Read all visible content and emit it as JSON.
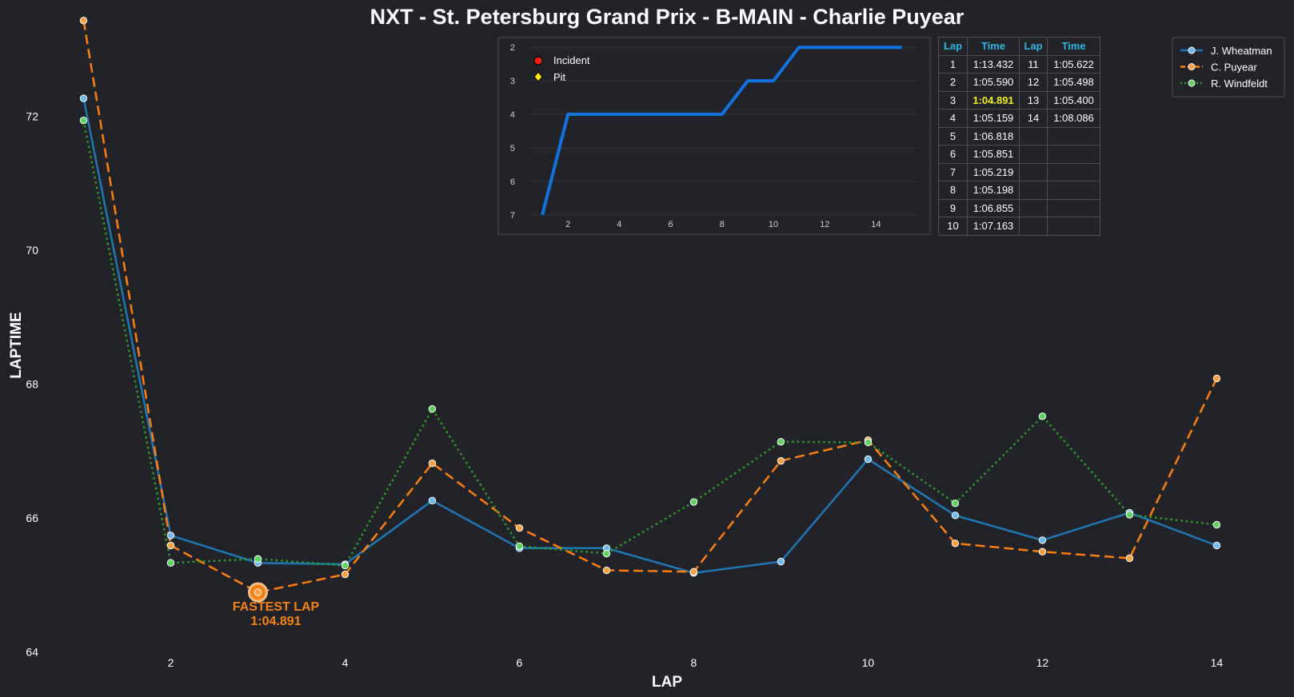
{
  "chart_data": [
    {
      "type": "line",
      "title": "NXT - St. Petersburg Grand Prix - B-MAIN - Charlie Puyear",
      "xlabel": "LAP",
      "ylabel": "LAPTIME",
      "xlim": [
        0.5,
        14.4
      ],
      "ylim": [
        63.9,
        73.5
      ],
      "xticks": [
        2,
        4,
        6,
        8,
        10,
        12,
        14
      ],
      "yticks": [
        64,
        66,
        68,
        70,
        72
      ],
      "grid": false,
      "legend_position": "top-right",
      "x": [
        1,
        2,
        3,
        4,
        5,
        6,
        7,
        8,
        9,
        10,
        11,
        12,
        13,
        14
      ],
      "series": [
        {
          "name": "J. Wheatman",
          "color": "#1f77b4",
          "marker": "#6fb8f0",
          "dash": "solid",
          "values": [
            72.27,
            65.74,
            65.33,
            65.31,
            66.26,
            65.55,
            65.55,
            65.18,
            65.35,
            66.88,
            66.04,
            65.67,
            66.08,
            65.59
          ]
        },
        {
          "name": "C. Puyear",
          "color": "#ff7f0e",
          "marker": "#ffa040",
          "dash": "dashed",
          "values": [
            73.432,
            65.59,
            64.891,
            65.159,
            66.818,
            65.851,
            65.219,
            65.198,
            66.855,
            67.163,
            65.622,
            65.498,
            65.4,
            68.086
          ]
        },
        {
          "name": "R. Windfeldt",
          "color": "#2ca02c",
          "marker": "#5fd35f",
          "dash": "dotted",
          "values": [
            71.94,
            65.33,
            65.39,
            65.29,
            67.63,
            65.58,
            65.47,
            66.24,
            67.14,
            67.13,
            66.22,
            67.52,
            66.05,
            65.9
          ]
        }
      ],
      "annotation": {
        "line1": "FASTEST LAP",
        "line2": "1:04.891",
        "lap": 3,
        "value": 64.891
      }
    },
    {
      "type": "line",
      "title": "",
      "xlim": [
        0.5,
        15.7
      ],
      "ylim": [
        7.1,
        1.9
      ],
      "xticks": [
        2,
        4,
        6,
        8,
        10,
        12,
        14
      ],
      "yticks": [
        2,
        3,
        4,
        5,
        6,
        7
      ],
      "x": [
        1,
        2,
        3,
        4,
        5,
        6,
        7,
        8,
        9,
        10,
        11,
        12,
        13,
        14,
        15
      ],
      "positions": [
        7,
        4,
        4,
        4,
        4,
        4,
        4,
        4,
        3,
        3,
        2,
        2,
        2,
        2,
        2
      ],
      "line_color": "#1273de",
      "legend": [
        {
          "label": "Incident",
          "color": "#ff1a1a",
          "shape": "circle"
        },
        {
          "label": "Pit",
          "color": "#ffee00",
          "shape": "diamond"
        }
      ]
    }
  ],
  "lap_table": {
    "headers": [
      "Lap",
      "Time",
      "Lap",
      "Time"
    ],
    "rows": [
      [
        "1",
        "1:13.432",
        "11",
        "1:05.622"
      ],
      [
        "2",
        "1:05.590",
        "12",
        "1:05.498"
      ],
      [
        "3",
        "1:04.891",
        "13",
        "1:05.400"
      ],
      [
        "4",
        "1:05.159",
        "14",
        "1:08.086"
      ],
      [
        "5",
        "1:06.818",
        "",
        ""
      ],
      [
        "6",
        "1:05.851",
        "",
        ""
      ],
      [
        "7",
        "1:05.219",
        "",
        ""
      ],
      [
        "8",
        "1:05.198",
        "",
        ""
      ],
      [
        "9",
        "1:06.855",
        "",
        ""
      ],
      [
        "10",
        "1:07.163",
        "",
        ""
      ]
    ],
    "highlight_lap": "3"
  },
  "colors": {
    "background": "#212328",
    "highlight": "#f2ee1a",
    "header": "#2ab8e8"
  }
}
